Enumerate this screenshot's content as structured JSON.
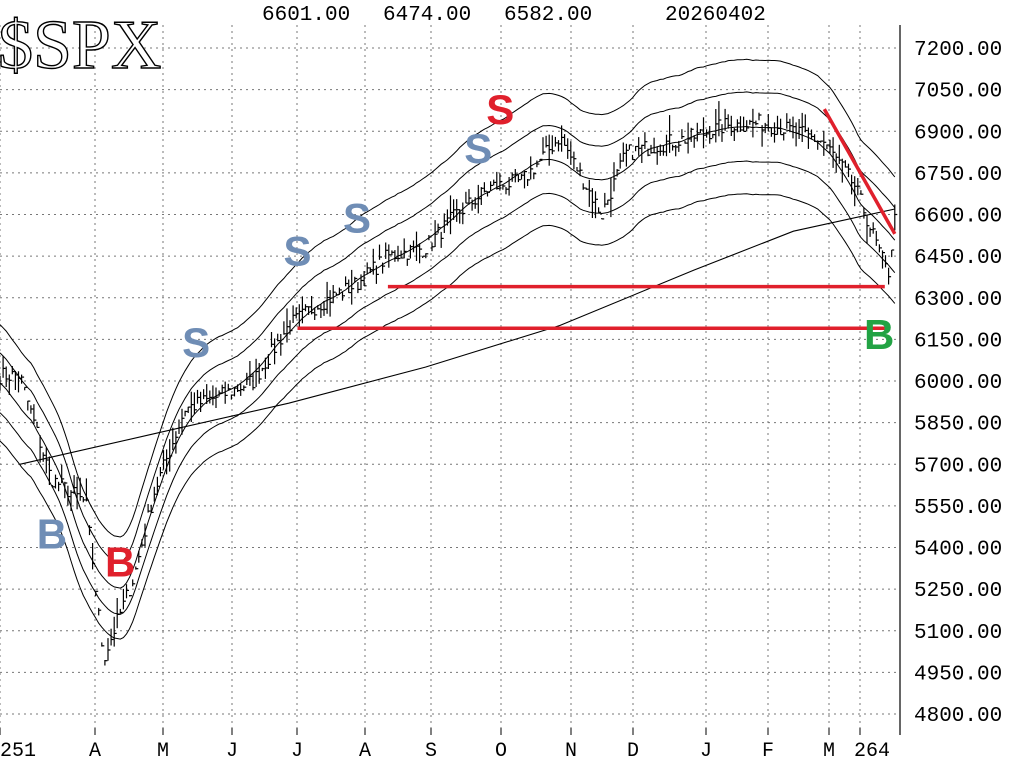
{
  "symbol": "$SPX",
  "header": {
    "high": "6601.00",
    "low": "6474.00",
    "close": "6582.00",
    "date": "20260402"
  },
  "chart_data": {
    "type": "bar",
    "subtype": "daily-ohlc-with-bands",
    "y_ticks": [
      "7200.00",
      "7050.00",
      "6900.00",
      "6750.00",
      "6600.00",
      "6450.00",
      "6300.00",
      "6150.00",
      "6000.00",
      "5850.00",
      "5700.00",
      "5550.00",
      "5400.00",
      "5250.00",
      "5100.00",
      "4950.00",
      "4800.00"
    ],
    "ylim": [
      4740,
      7300
    ],
    "x_labels": [
      "251",
      "A",
      "M",
      "J",
      "J",
      "A",
      "S",
      "O",
      "N",
      "D",
      "J",
      "F",
      "M",
      "264"
    ],
    "grid": "dotted",
    "price_path": [
      [
        "2025-03-01",
        6020
      ],
      [
        "2025-03-15",
        5650
      ],
      [
        "2025-03-31",
        5560
      ],
      [
        "2025-04-08",
        5000
      ],
      [
        "2025-04-22",
        5300
      ],
      [
        "2025-05-01",
        5600
      ],
      [
        "2025-05-15",
        5900
      ],
      [
        "2025-06-01",
        5950
      ],
      [
        "2025-06-15",
        6000
      ],
      [
        "2025-07-01",
        6200
      ],
      [
        "2025-07-15",
        6280
      ],
      [
        "2025-08-01",
        6350
      ],
      [
        "2025-08-15",
        6450
      ],
      [
        "2025-09-01",
        6480
      ],
      [
        "2025-09-15",
        6600
      ],
      [
        "2025-10-01",
        6700
      ],
      [
        "2025-10-15",
        6720
      ],
      [
        "2025-11-01",
        6880
      ],
      [
        "2025-11-20",
        6600
      ],
      [
        "2025-12-01",
        6820
      ],
      [
        "2025-12-15",
        6850
      ],
      [
        "2026-01-01",
        6880
      ],
      [
        "2026-01-15",
        6920
      ],
      [
        "2026-02-01",
        6930
      ],
      [
        "2026-02-15",
        6900
      ],
      [
        "2026-03-01",
        6860
      ],
      [
        "2026-03-15",
        6700
      ],
      [
        "2026-03-30",
        6380
      ],
      [
        "2026-04-02",
        6582
      ]
    ],
    "ma_200_path": [
      [
        "2025-03-01",
        5700
      ],
      [
        "2025-05-01",
        5810
      ],
      [
        "2025-07-01",
        5920
      ],
      [
        "2025-09-01",
        6050
      ],
      [
        "2025-11-01",
        6200
      ],
      [
        "2026-01-01",
        6400
      ],
      [
        "2026-02-15",
        6540
      ],
      [
        "2026-04-02",
        6620
      ]
    ],
    "support_lines": [
      {
        "value": 6340,
        "from": "2025-08-15",
        "to": "2026-04-02"
      },
      {
        "value": 6190,
        "from": "2025-07-05",
        "to": "2026-04-02"
      }
    ],
    "trendline": {
      "from": [
        "2026-03-01",
        6980
      ],
      "to": [
        "2026-04-02",
        6530
      ]
    },
    "signals": [
      {
        "label": "B",
        "date": "2025-03-15",
        "color": "#6f8db5",
        "price": 5450
      },
      {
        "label": "B",
        "date": "2025-04-15",
        "color": "#e0202c",
        "price": 5350
      },
      {
        "label": "S",
        "date": "2025-05-20",
        "color": "#6f8db5",
        "price": 6140
      },
      {
        "label": "S",
        "date": "2025-07-05",
        "color": "#6f8db5",
        "price": 6470
      },
      {
        "label": "S",
        "date": "2025-08-01",
        "color": "#6f8db5",
        "price": 6590
      },
      {
        "label": "S",
        "date": "2025-09-25",
        "color": "#6f8db5",
        "price": 6840
      },
      {
        "label": "S",
        "date": "2025-10-05",
        "color": "#e0202c",
        "price": 6980
      },
      {
        "label": "B",
        "date": "2026-04-02",
        "color": "#22a344",
        "price": 6170
      }
    ]
  }
}
